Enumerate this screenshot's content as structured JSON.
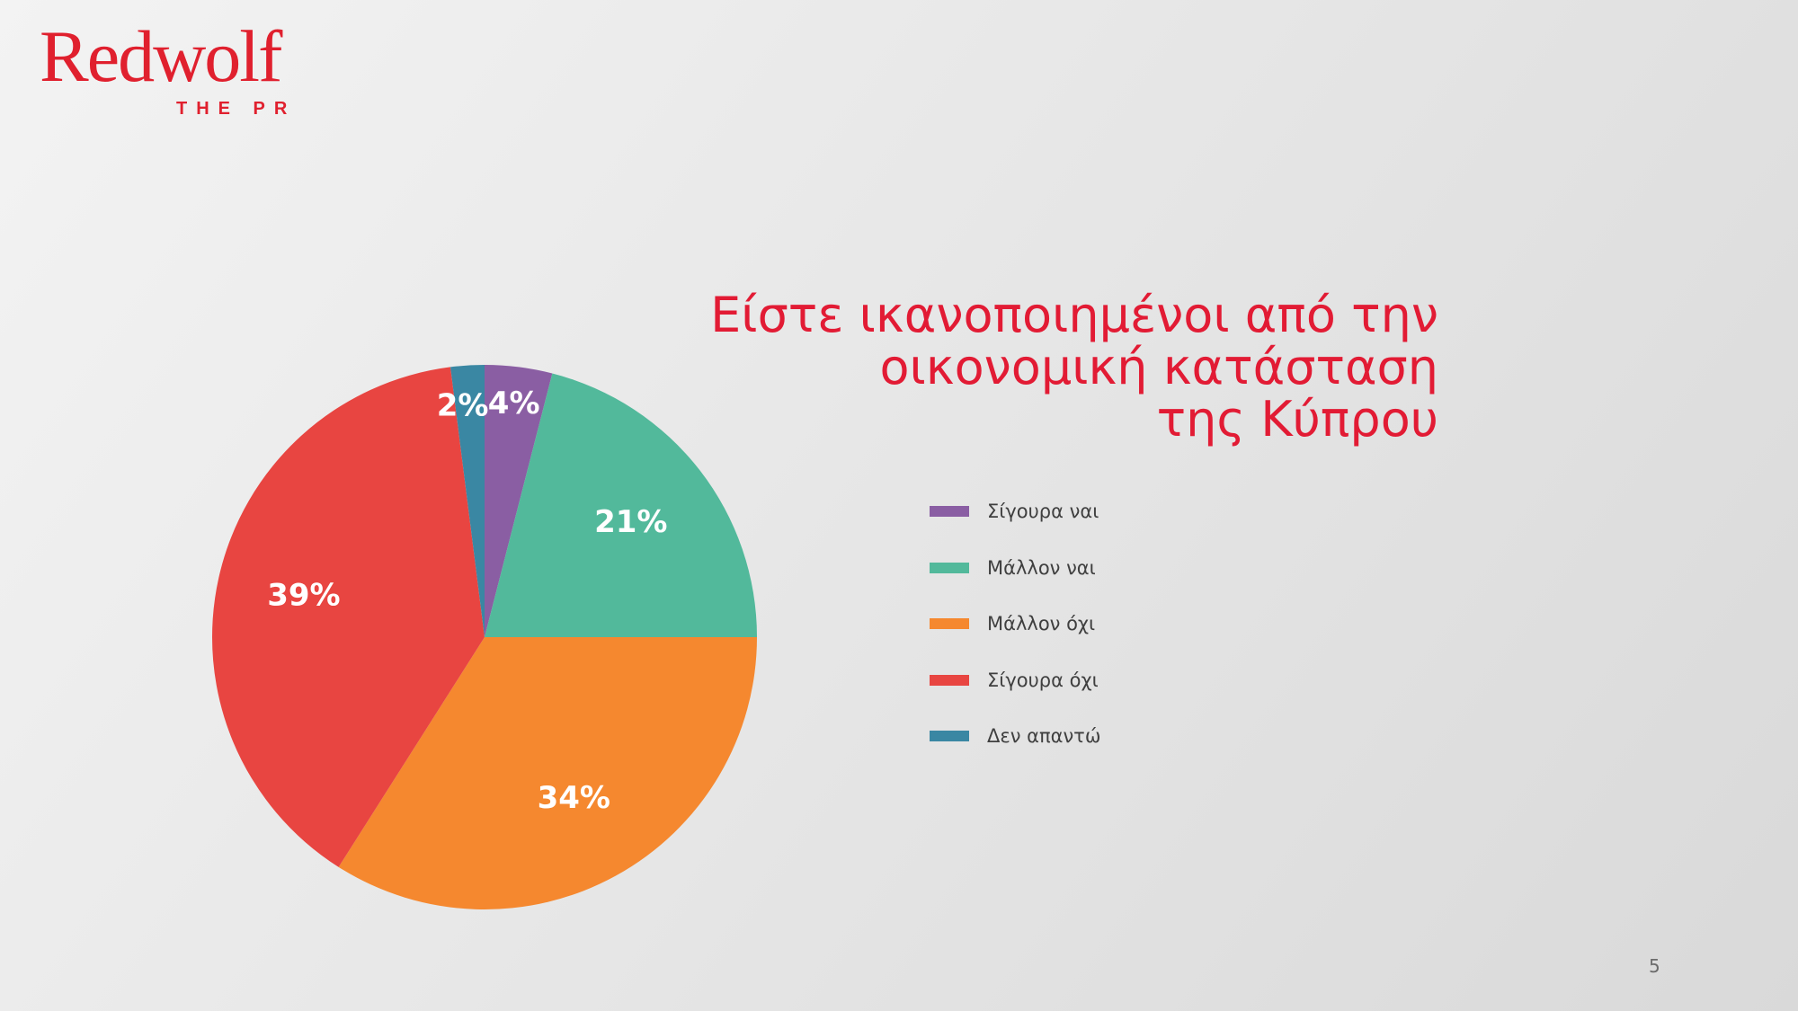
{
  "brand": {
    "name": "Redwolf",
    "tagline": "THE PR",
    "color": "#e0202e"
  },
  "page_number": "5",
  "chart_data": {
    "type": "pie",
    "title": "Είστε ικανοποιημένοι από την οικονομική κατάσταση της Κύπρου",
    "title_lines": [
      "Είστε ικανοποιημένοι από την",
      "οικονομική κατάσταση",
      "της Κύπρου"
    ],
    "title_color": "#e21b34",
    "start_angle_deg": 0,
    "direction": "clockwise",
    "legend_position": "right",
    "slices": [
      {
        "label": "Σίγουρα ναι",
        "value": 4,
        "display": "4%",
        "color": "#8a5ea3"
      },
      {
        "label": "Μάλλον ναι",
        "value": 21,
        "display": "21%",
        "color": "#52b99b"
      },
      {
        "label": "Μάλλον όχι",
        "value": 34,
        "display": "34%",
        "color": "#f5882f"
      },
      {
        "label": "Σίγουρα όχι",
        "value": 39,
        "display": "39%",
        "color": "#e84541"
      },
      {
        "label": "Δεν απαντώ",
        "value": 2,
        "display": "2%",
        "color": "#3a87a3"
      }
    ]
  }
}
